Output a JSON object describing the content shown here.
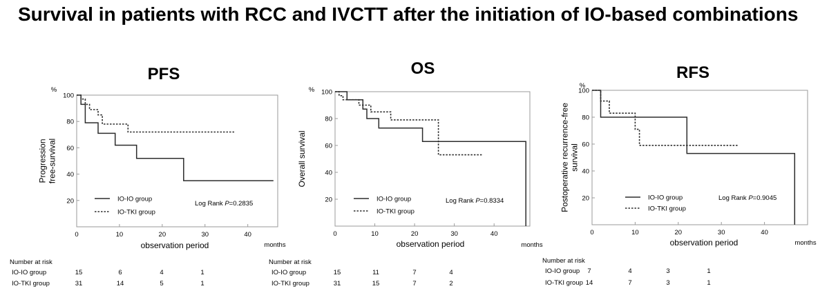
{
  "title": "Survival in patients with RCC and IVCTT after the initiation of IO-based combinations",
  "chart_data": [
    {
      "type": "line",
      "title": "PFS",
      "ylabel": "Progression free-survival",
      "yunit": "%",
      "xlabel": "observation period",
      "xunit": "months",
      "xlim": [
        0,
        47
      ],
      "ylim": [
        0,
        100
      ],
      "xticks": [
        "0",
        "10",
        "20",
        "30",
        "40"
      ],
      "yticks": [
        "20",
        "40",
        "60",
        "80",
        "100"
      ],
      "annotation": {
        "prefix": "Log Rank ",
        "p": "P",
        "value": "=0.2835"
      },
      "series": [
        {
          "name": "IO-IO group",
          "style": "solid",
          "x": [
            0,
            1,
            1,
            2,
            2,
            5,
            5,
            9,
            9,
            14,
            14,
            25,
            25,
            46
          ],
          "y": [
            100,
            100,
            93,
            93,
            79,
            79,
            71,
            71,
            62,
            62,
            52,
            52,
            35,
            35
          ]
        },
        {
          "name": "IO-TKI group",
          "style": "dotted",
          "x": [
            0,
            1,
            1,
            2,
            2,
            3,
            3,
            5,
            5,
            6,
            6,
            12,
            12,
            37
          ],
          "y": [
            100,
            100,
            97,
            97,
            93,
            93,
            89,
            89,
            85,
            85,
            78,
            78,
            72,
            72
          ]
        }
      ],
      "risk_table": {
        "header": "Number at risk",
        "times": [
          0,
          10,
          20,
          30
        ],
        "rows": [
          {
            "label": "IO-IO group",
            "values": [
              "15",
              "6",
              "4",
              "1"
            ]
          },
          {
            "label": "IO-TKI group",
            "values": [
              "31",
              "14",
              "5",
              "1"
            ]
          }
        ]
      }
    },
    {
      "type": "line",
      "title": "OS",
      "ylabel": "Overall survival",
      "yunit": "%",
      "xlabel": "observation period",
      "xunit": "months",
      "xlim": [
        0,
        49
      ],
      "ylim": [
        0,
        100
      ],
      "xticks": [
        "0",
        "10",
        "20",
        "30",
        "40"
      ],
      "yticks": [
        "20",
        "40",
        "60",
        "80",
        "100"
      ],
      "annotation": {
        "prefix": "Log Rank ",
        "p": "P",
        "value": "=0.8334"
      },
      "series": [
        {
          "name": "IO-IO group",
          "style": "solid",
          "x": [
            0,
            3,
            3,
            7,
            7,
            8,
            8,
            11,
            11,
            22,
            22,
            48,
            48
          ],
          "y": [
            100,
            100,
            94,
            94,
            87,
            87,
            80,
            80,
            73,
            73,
            63,
            63,
            0
          ]
        },
        {
          "name": "IO-TKI group",
          "style": "dotted",
          "x": [
            0,
            1,
            1,
            2,
            2,
            6,
            6,
            9,
            9,
            14,
            14,
            26,
            26,
            37
          ],
          "y": [
            100,
            100,
            97,
            97,
            94,
            94,
            90,
            90,
            85,
            85,
            79,
            79,
            53,
            53
          ]
        }
      ],
      "risk_table": {
        "header": "Number at risk",
        "times": [
          0,
          10,
          20,
          30
        ],
        "rows": [
          {
            "label": "IO-IO group",
            "values": [
              "15",
              "11",
              "7",
              "4"
            ]
          },
          {
            "label": "IO-TKI group",
            "values": [
              "31",
              "15",
              "7",
              "2"
            ]
          }
        ]
      }
    },
    {
      "type": "line",
      "title": "RFS",
      "ylabel": "Postoperative recurrence-free survival",
      "yunit": "%",
      "xlabel": "observation period",
      "xunit": "months",
      "xlim": [
        0,
        50
      ],
      "ylim": [
        0,
        100
      ],
      "xticks": [
        "0",
        "10",
        "20",
        "30",
        "40"
      ],
      "yticks": [
        "20",
        "40",
        "60",
        "80",
        "100"
      ],
      "annotation": {
        "prefix": "Log Rank ",
        "p": "P",
        "value": "=0.9045"
      },
      "series": [
        {
          "name": "IO-IO group",
          "style": "solid",
          "x": [
            0,
            2,
            2,
            22,
            22,
            47,
            47
          ],
          "y": [
            100,
            100,
            80,
            80,
            53,
            53,
            0
          ]
        },
        {
          "name": "IO-TKI group",
          "style": "dotted",
          "x": [
            0,
            2,
            2,
            4,
            4,
            10,
            10,
            11,
            11,
            34
          ],
          "y": [
            100,
            100,
            92,
            92,
            83,
            83,
            71,
            71,
            59,
            59
          ]
        }
      ],
      "risk_table": {
        "header": "Number at risk",
        "times": [
          0,
          10,
          20,
          30
        ],
        "rows": [
          {
            "label": "IO-IO group",
            "values": [
              "7",
              "4",
              "3",
              "1"
            ]
          },
          {
            "label": "IO-TKI group",
            "values": [
              "14",
              "7",
              "3",
              "1"
            ]
          }
        ]
      }
    }
  ]
}
